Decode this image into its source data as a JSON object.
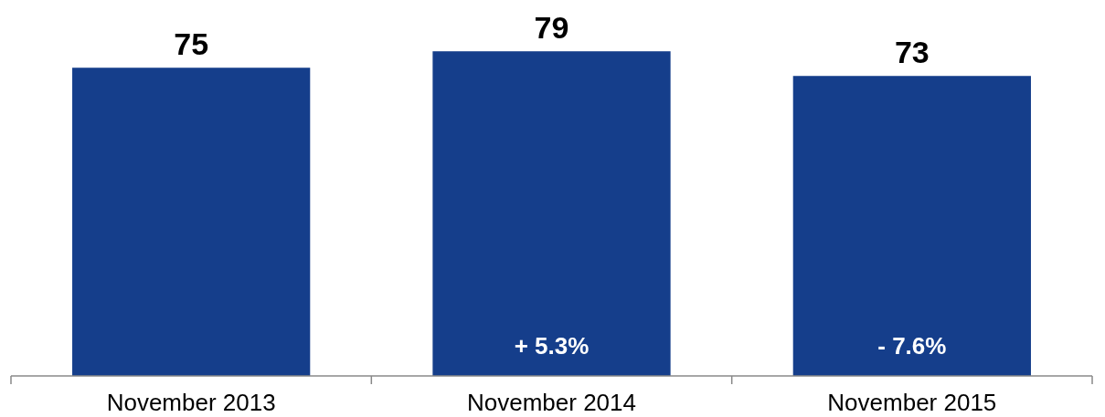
{
  "chart_data": {
    "type": "bar",
    "categories": [
      "November 2013",
      "November 2014",
      "November 2015"
    ],
    "values": [
      75,
      79,
      73
    ],
    "color": "#153e8b",
    "data_labels": true,
    "tick_labels": "x",
    "annotations": [
      "+ 5.3%",
      "- 7.6%"
    ]
  }
}
